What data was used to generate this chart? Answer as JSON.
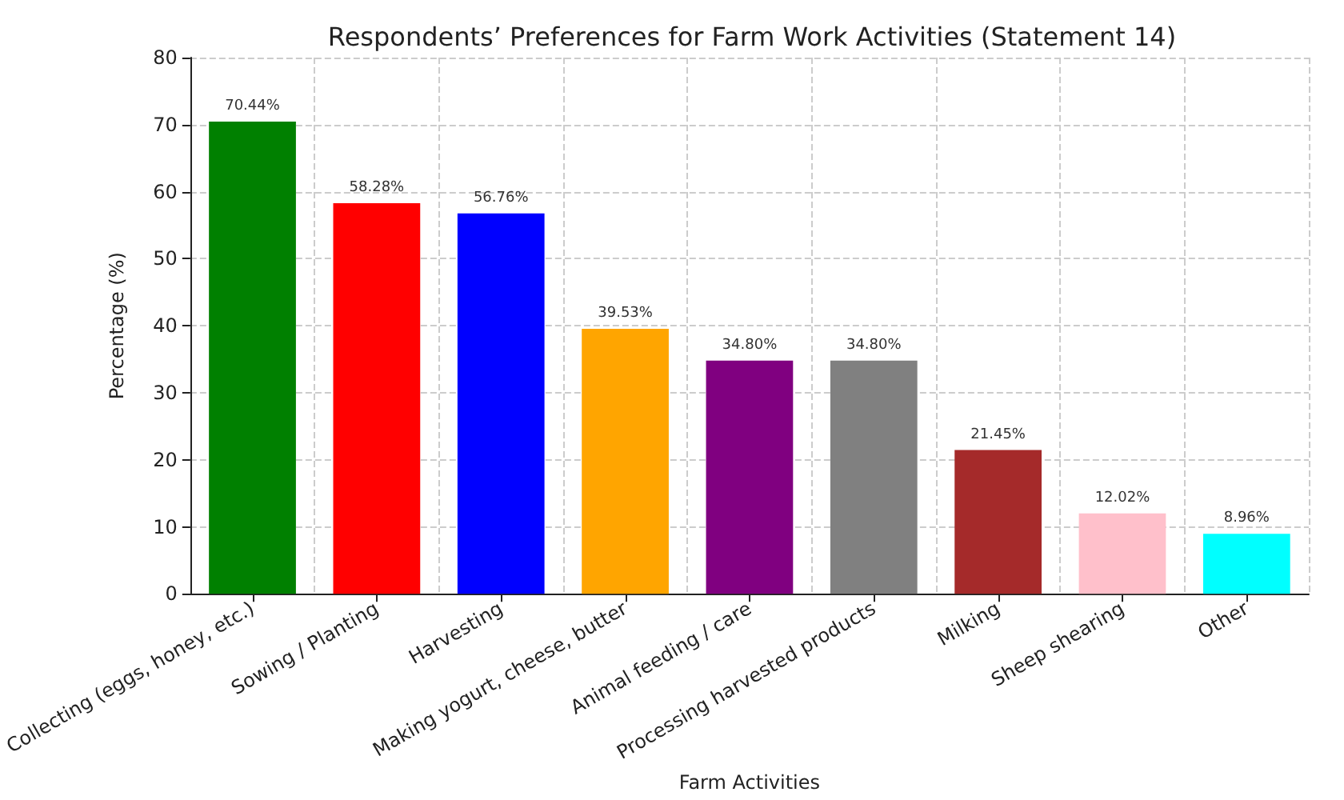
{
  "chart_data": {
    "type": "bar",
    "title": "Respondents’ Preferences for Farm Work Activities (Statement 14)",
    "xlabel": "Farm Activities",
    "ylabel": "Percentage (%)",
    "categories": [
      "Collecting (eggs, honey, etc.)",
      "Sowing / Planting",
      "Harvesting",
      "Making yogurt, cheese, butter",
      "Animal feeding / care",
      "Processing harvested products",
      "Milking",
      "Sheep shearing",
      "Other"
    ],
    "values": [
      70.44,
      58.28,
      56.76,
      39.53,
      34.8,
      34.8,
      21.45,
      12.02,
      8.96
    ],
    "value_labels": [
      "70.44%",
      "58.28%",
      "56.76%",
      "39.53%",
      "34.80%",
      "34.80%",
      "21.45%",
      "12.02%",
      "8.96%"
    ],
    "colors": [
      "#008000",
      "#ff0000",
      "#0000ff",
      "#ffa500",
      "#800080",
      "#808080",
      "#a52a2a",
      "#ffc0cb",
      "#00ffff"
    ],
    "ylim": [
      0,
      80
    ],
    "yticks": [
      0,
      10,
      20,
      30,
      40,
      50,
      60,
      70,
      80
    ],
    "grid": true
  }
}
